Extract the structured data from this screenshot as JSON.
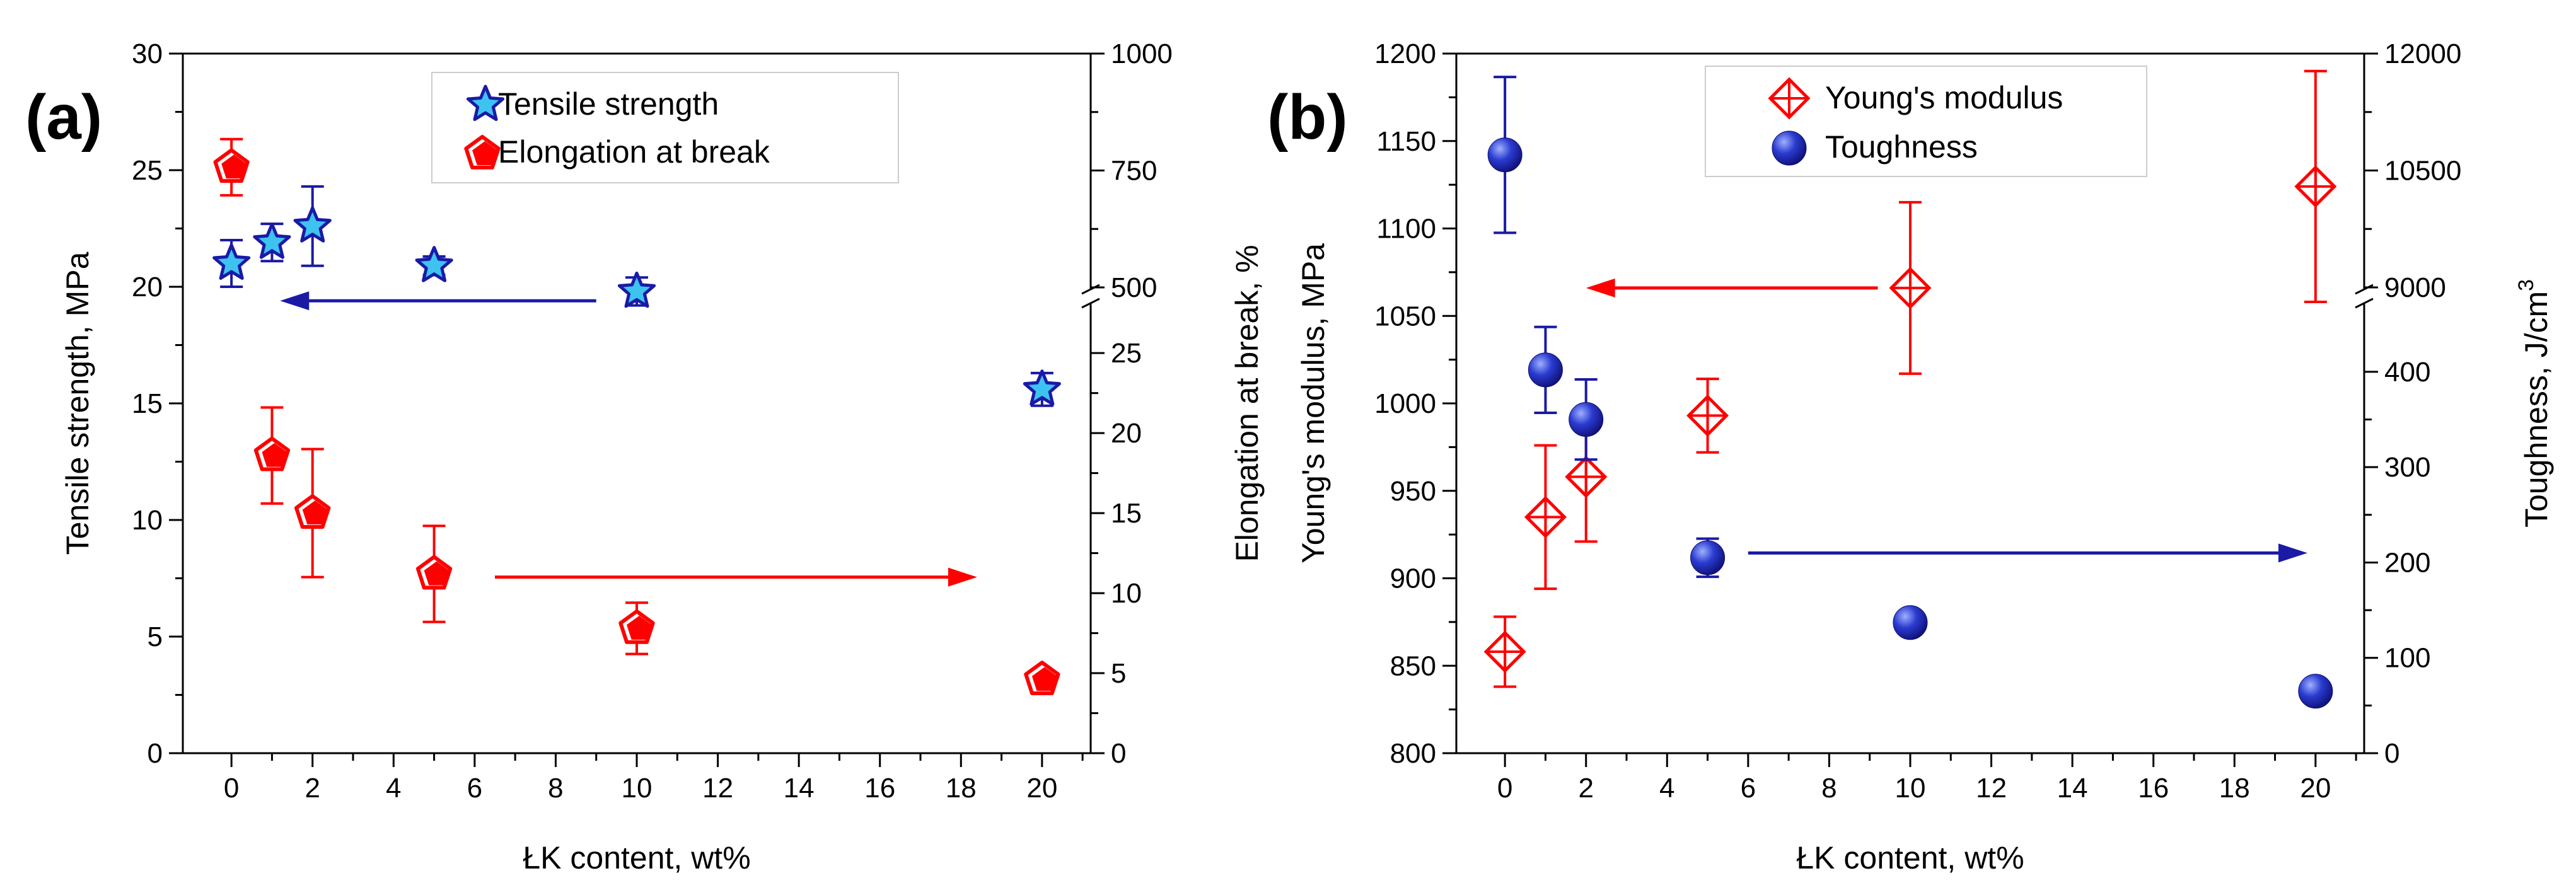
{
  "chart_data": [
    {
      "type": "scatter",
      "panel_label": "(a)",
      "xlabel": "ŁK content, wt%",
      "ylabel_left": "Tensile strength, MPa",
      "ylabel_right": "Elongation at break, %",
      "x_ticks": [
        "0",
        "2",
        "4",
        "6",
        "8",
        "10",
        "12",
        "14",
        "16",
        "18",
        "20"
      ],
      "left_ticks": [
        "0",
        "5",
        "10",
        "15",
        "20",
        "25",
        "30"
      ],
      "right_ticks_lower": [
        "0",
        "5",
        "10",
        "15",
        "20",
        "25"
      ],
      "right_ticks_upper": [
        "500",
        "750",
        "1000"
      ],
      "xlim": [
        -1.2,
        21.2
      ],
      "ylim_left": [
        0,
        30
      ],
      "right_axis_break": {
        "lower": [
          0,
          28
        ],
        "upper": [
          500,
          1000
        ]
      },
      "legend": [
        "Tensile strength",
        "Elongation at break"
      ],
      "series": [
        {
          "name": "Tensile strength",
          "axis": "left",
          "marker": "star",
          "x": [
            0,
            1,
            2,
            5,
            10,
            20
          ],
          "y": [
            21.0,
            21.9,
            22.6,
            20.9,
            19.8,
            15.6
          ],
          "err": [
            1.0,
            0.8,
            1.7,
            0.4,
            0.6,
            0.7
          ]
        },
        {
          "name": "Elongation at break",
          "axis": "right",
          "marker": "pentagon",
          "x": [
            0,
            1,
            2,
            5,
            10,
            20
          ],
          "y": [
            757,
            18.6,
            15.0,
            11.2,
            7.8,
            4.6
          ],
          "err": [
            60,
            3.0,
            4.0,
            3.0,
            1.6,
            0.5
          ]
        }
      ],
      "arrows": [
        {
          "from_x": 9.0,
          "to_x": 1.2,
          "axis": "left",
          "y": 19.4,
          "color": "#1a1aa6"
        },
        {
          "from_x": 6.5,
          "to_x": 18.4,
          "axis": "right",
          "y": 11.0,
          "color": "#ff0000"
        }
      ]
    },
    {
      "type": "scatter",
      "panel_label": "(b)",
      "xlabel": "ŁK content, wt%",
      "ylabel_left": "Young's modulus, MPa",
      "ylabel_right": "Toughness, J/cm",
      "ylabel_right_sup": "3",
      "x_ticks": [
        "0",
        "2",
        "4",
        "6",
        "8",
        "10",
        "12",
        "14",
        "16",
        "18",
        "20"
      ],
      "left_ticks": [
        "800",
        "850",
        "900",
        "950",
        "1000",
        "1050",
        "1100",
        "1150",
        "1200"
      ],
      "right_ticks_lower": [
        "0",
        "100",
        "200",
        "300",
        "400"
      ],
      "right_ticks_upper": [
        "9000",
        "10500",
        "12000"
      ],
      "xlim": [
        -1.2,
        21.2
      ],
      "ylim_left": [
        800,
        1200
      ],
      "right_axis_break": {
        "lower": [
          0,
          470
        ],
        "upper": [
          9000,
          12000
        ]
      },
      "legend": [
        "Young's modulus",
        "Toughness"
      ],
      "series": [
        {
          "name": "Young's modulus",
          "axis": "left",
          "marker": "diamond",
          "x": [
            0,
            1,
            2,
            5,
            10,
            20
          ],
          "y": [
            858,
            935,
            958,
            993,
            1066,
            1124
          ],
          "err": [
            20,
            41,
            37,
            21,
            49,
            66
          ]
        },
        {
          "name": "Toughness",
          "axis": "right",
          "marker": "sphere",
          "x": [
            0,
            1,
            2,
            5,
            10,
            20
          ],
          "y": [
            10700,
            402,
            350,
            205,
            137,
            65
          ],
          "err": [
            1000,
            45,
            42,
            20,
            0,
            0
          ]
        }
      ],
      "arrows": [
        {
          "from_x": 9.2,
          "to_x": 2.0,
          "axis": "left",
          "y": 1066,
          "color": "#ff0000"
        },
        {
          "from_x": 6.0,
          "to_x": 19.8,
          "axis": "right",
          "y": 210,
          "color": "#1a1aa6"
        }
      ]
    }
  ],
  "colors": {
    "red": "#ff0000",
    "blue": "#1a1aa6",
    "star_fill": "#3ec3f0",
    "sphere_dark": "#0d0d70",
    "sphere_light": "#8a9cff"
  }
}
